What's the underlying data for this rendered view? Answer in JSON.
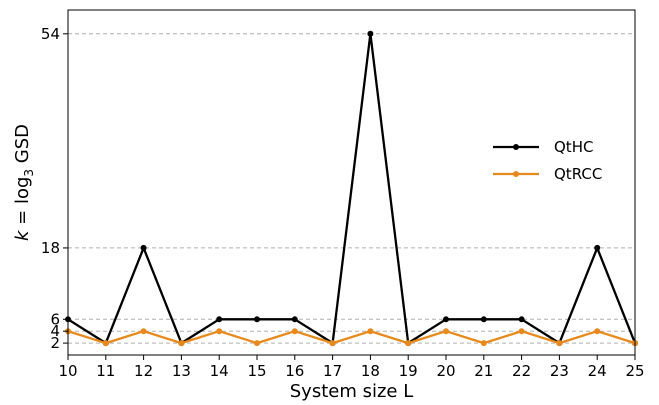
{
  "chart_data": {
    "type": "line",
    "xlabel": "System size L",
    "ylabel_prefix": "k",
    "ylabel_eq": " = log",
    "ylabel_sub": "3",
    "ylabel_suffix": " GSD",
    "x": [
      10,
      11,
      12,
      13,
      14,
      15,
      16,
      17,
      18,
      19,
      20,
      21,
      22,
      23,
      24,
      25
    ],
    "xlim": [
      10,
      25
    ],
    "ylim": [
      0,
      58
    ],
    "yticks": [
      2,
      4,
      6,
      18,
      54
    ],
    "grid": "horizontal dashed at y ticks",
    "legend": "center-right",
    "series": [
      {
        "name": "QtHC",
        "color": "#000000",
        "values": [
          6,
          2,
          18,
          2,
          6,
          6,
          6,
          2,
          54,
          2,
          6,
          6,
          6,
          2,
          18,
          2
        ]
      },
      {
        "name": "QtRCC",
        "color": "#e8891c",
        "values": [
          4,
          2,
          4,
          2,
          4,
          2,
          4,
          2,
          4,
          2,
          4,
          2,
          4,
          2,
          4,
          2
        ]
      }
    ]
  }
}
